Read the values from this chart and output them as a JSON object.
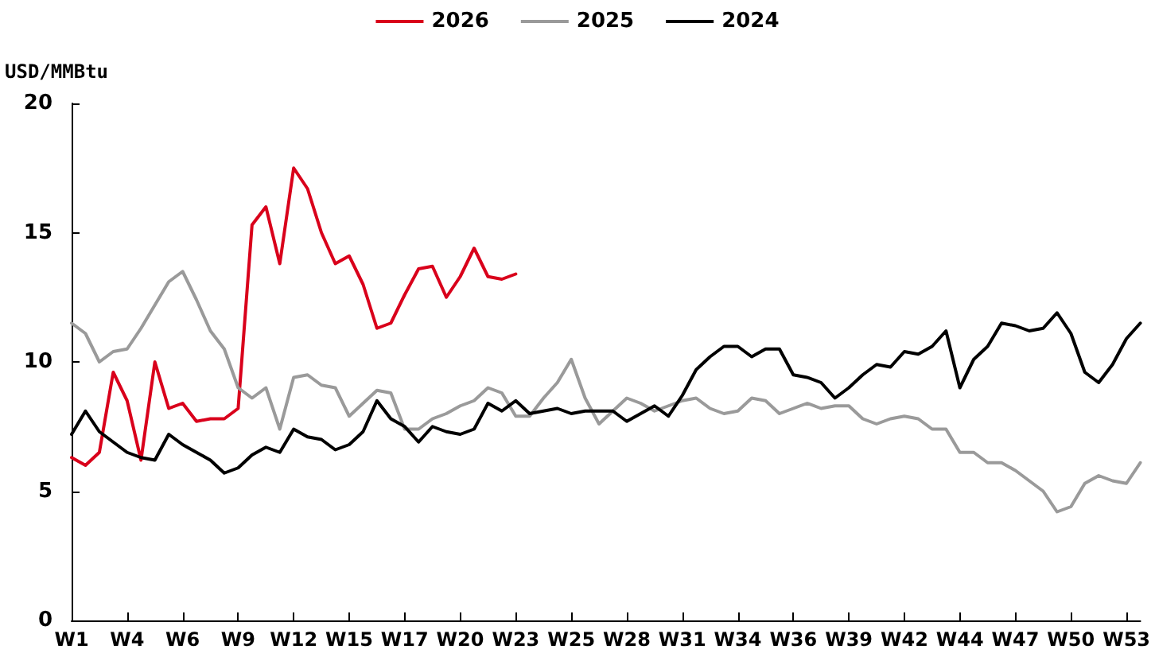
{
  "chart_data": {
    "type": "line",
    "ylabel": "USD/MMBtu",
    "legend": "top",
    "grid": false,
    "marker": "none",
    "line_style": "solid",
    "ylim": [
      0,
      20
    ],
    "yticks": [
      0,
      5,
      10,
      15,
      20
    ],
    "categories": [
      "W1",
      null,
      null,
      null,
      "W4",
      null,
      null,
      null,
      "W6",
      null,
      null,
      null,
      "W9",
      null,
      null,
      null,
      "W12",
      null,
      null,
      null,
      "W15",
      null,
      null,
      null,
      "W17",
      null,
      null,
      null,
      "W20",
      null,
      null,
      null,
      "W23",
      null,
      null,
      null,
      "W25",
      null,
      null,
      null,
      "W28",
      null,
      null,
      null,
      "W31",
      null,
      null,
      null,
      "W34",
      null,
      null,
      null,
      "W36",
      null,
      null,
      null,
      "W39",
      null,
      null,
      null,
      "W42",
      null,
      null,
      null,
      "W44",
      null,
      null,
      null,
      "W47",
      null,
      null,
      null,
      "W50",
      null,
      null,
      null,
      "W53",
      null
    ],
    "series": [
      {
        "name": "2026",
        "color": "#d9001b",
        "values": [
          6.3,
          6.0,
          6.5,
          9.6,
          8.5,
          6.2,
          10.0,
          8.2,
          8.4,
          7.7,
          7.8,
          7.8,
          8.2,
          15.3,
          16.0,
          13.8,
          17.5,
          16.7,
          15.0,
          13.8,
          14.1,
          13.0,
          11.3,
          11.5,
          12.6,
          13.6,
          13.7,
          12.5,
          13.3,
          14.4,
          13.3,
          13.2,
          13.4,
          null,
          null,
          null,
          null,
          null,
          null,
          null,
          null,
          null,
          null,
          null,
          null,
          null,
          null,
          null,
          null,
          null,
          null,
          null,
          null,
          null,
          null,
          null,
          null,
          null,
          null,
          null,
          null,
          null,
          null,
          null,
          null,
          null,
          null,
          null,
          null,
          null,
          null,
          null,
          null,
          null,
          null,
          null,
          null,
          null
        ]
      },
      {
        "name": "2025",
        "color": "#9a9a9a",
        "values": [
          11.5,
          11.1,
          10.0,
          10.4,
          10.5,
          11.3,
          12.2,
          13.1,
          13.5,
          12.4,
          11.2,
          10.5,
          9.0,
          8.6,
          9.0,
          7.4,
          9.4,
          9.5,
          9.1,
          9.0,
          7.9,
          8.4,
          8.9,
          8.8,
          7.4,
          7.4,
          7.8,
          8.0,
          8.3,
          8.5,
          9.0,
          8.8,
          7.9,
          7.9,
          8.6,
          9.2,
          10.1,
          8.6,
          7.6,
          8.1,
          8.6,
          8.4,
          8.1,
          8.3,
          8.5,
          8.6,
          8.2,
          8.0,
          8.1,
          8.6,
          8.5,
          8.0,
          8.2,
          8.4,
          8.2,
          8.3,
          8.3,
          7.8,
          7.6,
          7.8,
          7.9,
          7.8,
          7.4,
          7.4,
          6.5,
          6.5,
          6.1,
          6.1,
          5.8,
          5.4,
          5.0,
          4.2,
          4.4,
          5.3,
          5.6,
          5.4,
          5.3,
          6.1
        ]
      },
      {
        "name": "2024",
        "color": "#000000",
        "values": [
          7.2,
          8.1,
          7.3,
          6.9,
          6.5,
          6.3,
          6.2,
          7.2,
          6.8,
          6.5,
          6.2,
          5.7,
          5.9,
          6.4,
          6.7,
          6.5,
          7.4,
          7.1,
          7.0,
          6.6,
          6.8,
          7.3,
          8.5,
          7.8,
          7.5,
          6.9,
          7.5,
          7.3,
          7.2,
          7.4,
          8.4,
          8.1,
          8.5,
          8.0,
          8.1,
          8.2,
          8.0,
          8.1,
          8.1,
          8.1,
          7.7,
          8.0,
          8.3,
          7.9,
          8.7,
          9.7,
          10.2,
          10.6,
          10.6,
          10.2,
          10.5,
          10.5,
          9.5,
          9.4,
          9.2,
          8.6,
          9.0,
          9.5,
          9.9,
          9.8,
          10.4,
          10.3,
          10.6,
          11.2,
          9.0,
          10.1,
          10.6,
          11.5,
          11.4,
          11.2,
          11.3,
          11.9,
          11.1,
          9.6,
          9.2,
          9.9,
          10.9,
          11.5
        ]
      }
    ]
  }
}
